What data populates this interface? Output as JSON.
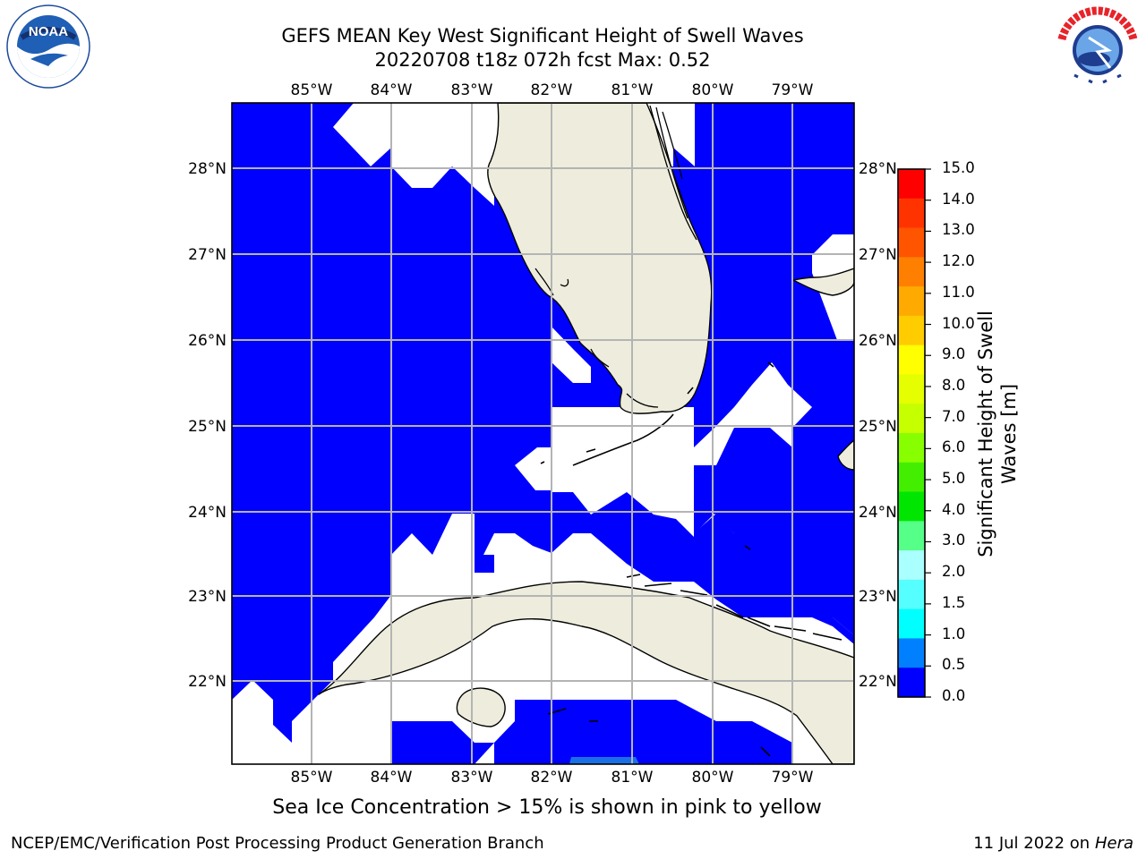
{
  "header": {
    "title_line1": "GEFS MEAN Key West Significant Height of Swell Waves",
    "title_line2": "20220708 t18z 072h fcst   Max: 0.52"
  },
  "logos": {
    "left": {
      "name": "noaa-logo",
      "text": "NOAA",
      "ring_text": "NATIONAL OCEANIC AND ATMOSPHERIC ADMINISTRATION · U.S. DEPARTMENT OF COMMERCE"
    },
    "right": {
      "name": "nws-logo",
      "ring_text": "NATIONAL WEATHER SERVICE"
    }
  },
  "map": {
    "lon_labels": [
      "85°W",
      "84°W",
      "83°W",
      "82°W",
      "81°W",
      "80°W",
      "79°W"
    ],
    "lat_labels": [
      "28°N",
      "27°N",
      "26°N",
      "25°N",
      "24°N",
      "23°N",
      "22°N"
    ],
    "extent": {
      "lon_min": -86.0,
      "lon_max": -78.25,
      "lat_min": 21.0,
      "lat_max": 28.75
    },
    "land_color": "#eeeddd",
    "sea_color": "#0000ff",
    "nodata_color": "#ffffff",
    "grid_color": "#b4b4b4"
  },
  "colorbar": {
    "title": "Significant Height of Swell Waves [m]",
    "title_line1": "Significant Height of Swell",
    "title_line2": "Waves [m]",
    "ticks": [
      "15.0",
      "14.0",
      "13.0",
      "12.0",
      "11.0",
      "10.0",
      "9.0",
      "8.0",
      "7.0",
      "6.0",
      "5.0",
      "4.0",
      "3.0",
      "2.0",
      "1.5",
      "1.0",
      "0.5",
      "0.0"
    ],
    "colors": [
      "#ff0000",
      "#ff3300",
      "#ff5500",
      "#ff8000",
      "#ffaa00",
      "#ffcc00",
      "#ffff00",
      "#e5ff00",
      "#c6ff00",
      "#88ff00",
      "#44ee00",
      "#00e600",
      "#55ff88",
      "#aaffff",
      "#55ffff",
      "#00ffff",
      "#0080ff",
      "#0000ff"
    ]
  },
  "caption": "Sea Ice Concentration > 15% is shown in pink to yellow",
  "footer": {
    "left": "NCEP/EMC/Verification Post Processing Product Generation Branch",
    "date": "11 Jul 2022 on",
    "machine": "Hera"
  }
}
